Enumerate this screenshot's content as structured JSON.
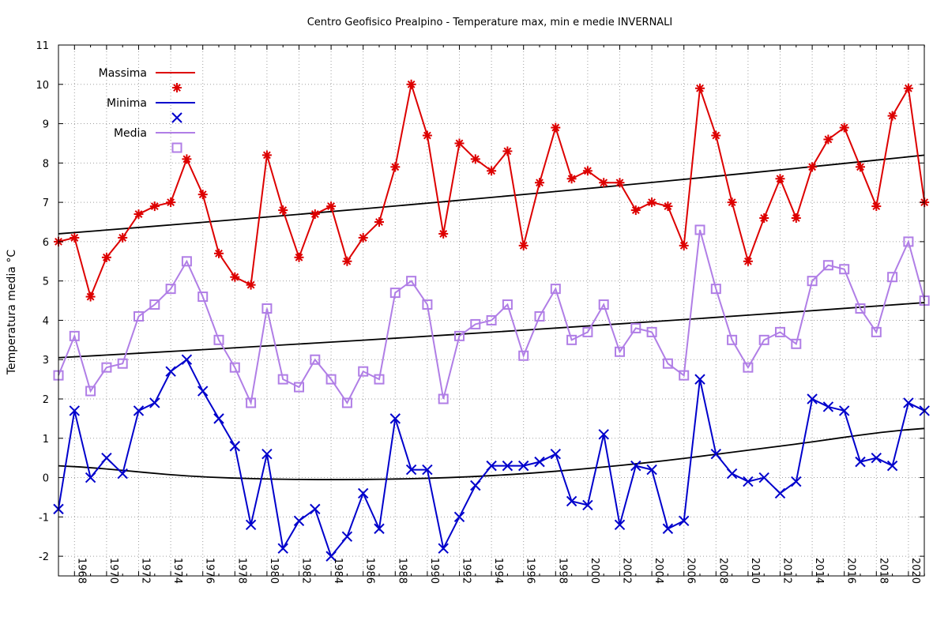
{
  "chart_data": {
    "type": "line",
    "title": "Centro Geofisico Prealpino - Temperature max, min e medie INVERNALI",
    "xlabel": "",
    "ylabel": "Temperatura media °C",
    "xlim": [
      1967,
      2021
    ],
    "ylim": [
      -2.5,
      11
    ],
    "x_ticks": [
      1968,
      1970,
      1972,
      1974,
      1976,
      1978,
      1980,
      1982,
      1984,
      1986,
      1988,
      1990,
      1992,
      1994,
      1996,
      1998,
      2000,
      2002,
      2004,
      2006,
      2008,
      2010,
      2012,
      2014,
      2016,
      2018,
      2020
    ],
    "y_ticks": [
      -2,
      -1,
      0,
      1,
      2,
      3,
      4,
      5,
      6,
      7,
      8,
      9,
      10,
      11
    ],
    "grid": true,
    "legend_position": "top-left",
    "x": [
      1967,
      1968,
      1969,
      1970,
      1971,
      1972,
      1973,
      1974,
      1975,
      1976,
      1977,
      1978,
      1979,
      1980,
      1981,
      1982,
      1983,
      1984,
      1985,
      1986,
      1987,
      1988,
      1989,
      1990,
      1991,
      1992,
      1993,
      1994,
      1995,
      1996,
      1997,
      1998,
      1999,
      2000,
      2001,
      2002,
      2003,
      2004,
      2005,
      2006,
      2007,
      2008,
      2009,
      2010,
      2011,
      2012,
      2013,
      2014,
      2015,
      2016,
      2017,
      2018,
      2019,
      2020,
      2021
    ],
    "series": [
      {
        "name": "Massima",
        "color": "#dd0000",
        "marker": "asterisk",
        "values": [
          6.0,
          6.1,
          4.6,
          5.6,
          6.1,
          6.7,
          6.9,
          7.0,
          8.1,
          7.2,
          5.7,
          5.1,
          4.9,
          8.2,
          6.8,
          5.6,
          6.7,
          6.9,
          5.5,
          6.1,
          6.5,
          7.9,
          10.0,
          8.7,
          6.2,
          8.5,
          8.1,
          7.8,
          8.3,
          5.9,
          7.5,
          8.9,
          7.6,
          7.8,
          7.5,
          7.5,
          6.8,
          7.0,
          6.9,
          5.9,
          9.9,
          8.7,
          7.0,
          5.5,
          6.6,
          7.6,
          6.6,
          7.9,
          8.6,
          8.9,
          7.9,
          6.9,
          9.2,
          9.9,
          7.0
        ],
        "trend": {
          "start": 6.2,
          "end": 8.2
        }
      },
      {
        "name": "Minima",
        "color": "#0000cc",
        "marker": "cross",
        "values": [
          -0.8,
          1.7,
          0.0,
          0.5,
          0.1,
          1.7,
          1.9,
          2.7,
          3.0,
          2.2,
          1.5,
          0.8,
          -1.2,
          0.6,
          -1.8,
          -1.1,
          -0.8,
          -2.0,
          -1.5,
          -0.4,
          -1.3,
          1.5,
          0.2,
          0.2,
          -1.8,
          -1.0,
          -0.2,
          0.3,
          0.3,
          0.3,
          0.4,
          0.6,
          -0.6,
          -0.7,
          1.1,
          -1.2,
          0.3,
          0.2,
          -1.3,
          -1.1,
          2.5,
          0.6,
          0.1,
          -0.1,
          0.0,
          -0.4,
          -0.1,
          2.0,
          1.8,
          1.7,
          0.4,
          0.5,
          0.3,
          1.9,
          1.7
        ],
        "trend_points": [
          0.3,
          0.02,
          -0.05,
          0.05,
          0.35,
          0.8,
          1.25
        ]
      },
      {
        "name": "Media",
        "color": "#b07ee6",
        "marker": "square",
        "values": [
          2.6,
          3.6,
          2.2,
          2.8,
          2.9,
          4.1,
          4.4,
          4.8,
          5.5,
          4.6,
          3.5,
          2.8,
          1.9,
          4.3,
          2.5,
          2.3,
          3.0,
          2.5,
          1.9,
          2.7,
          2.5,
          4.7,
          5.0,
          4.4,
          2.0,
          3.6,
          3.9,
          4.0,
          4.4,
          3.1,
          4.1,
          4.8,
          3.5,
          3.7,
          4.4,
          3.2,
          3.8,
          3.7,
          2.9,
          2.6,
          6.3,
          4.8,
          3.5,
          2.8,
          3.5,
          3.7,
          3.4,
          5.0,
          5.4,
          5.3,
          4.3,
          3.7,
          5.1,
          6.0,
          4.5
        ],
        "trend": {
          "start": 3.05,
          "end": 4.45
        }
      }
    ],
    "trend_color": "#000000"
  }
}
